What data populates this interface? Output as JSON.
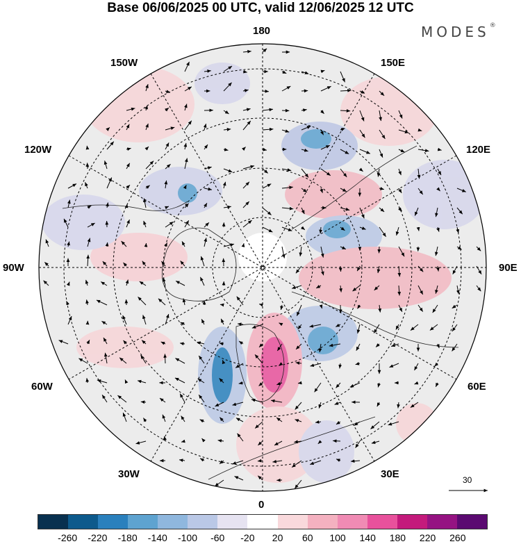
{
  "title": "Base 06/06/2025 00 UTC, valid 12/06/2025 12 UTC",
  "brand": {
    "name": "MODES",
    "mark": "®"
  },
  "longitude_labels": {
    "top": "180",
    "bottom": "0",
    "left": "90W",
    "right": "90E",
    "upper_left": "150W",
    "upper_right": "150E",
    "mid_upper_left": "120W",
    "mid_upper_right": "120E",
    "mid_lower_left": "60W",
    "mid_lower_right": "60E",
    "lower_left": "30W",
    "lower_right": "30E"
  },
  "vector_scale": {
    "label": "30"
  },
  "colorbar": {
    "colors": [
      "#08304f",
      "#0d5a8c",
      "#2a80bd",
      "#5ea3d0",
      "#8fb7de",
      "#bac8e6",
      "#e6e3f1",
      "#ffffff",
      "#f9d9dc",
      "#f4b1c0",
      "#f08bb4",
      "#e8519c",
      "#c41a7c",
      "#951382",
      "#5b0a71"
    ],
    "tick_labels": [
      "-260",
      "-220",
      "-180",
      "-140",
      "-100",
      "-60",
      "-20",
      "20",
      "60",
      "100",
      "140",
      "180",
      "220",
      "260"
    ]
  }
}
